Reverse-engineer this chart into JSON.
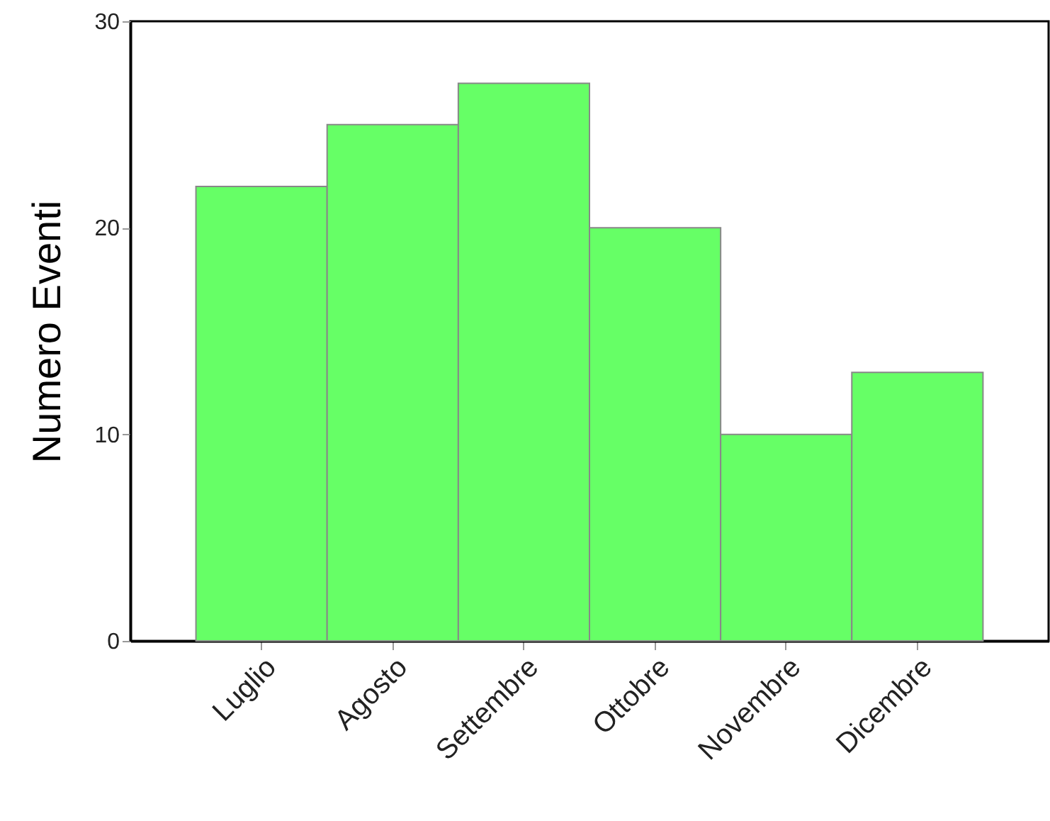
{
  "chart_data": {
    "type": "bar",
    "ylabel": "Numero Eventi",
    "categories": [
      "Luglio",
      "Agosto",
      "Settembre",
      "Ottobre",
      "Novembre",
      "Dicembre"
    ],
    "values": [
      22,
      25,
      27,
      20,
      10,
      13
    ],
    "color": "#66ff66",
    "ylim": [
      0,
      30
    ],
    "yticks": [
      0,
      10,
      20,
      30
    ],
    "grid": false
  }
}
